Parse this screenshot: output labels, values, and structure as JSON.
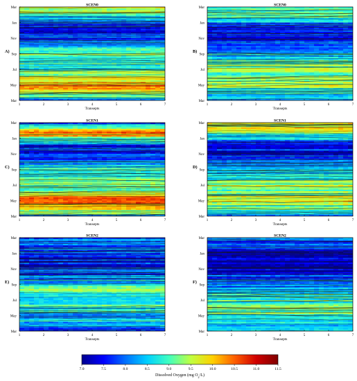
{
  "colors": {
    "colormap": [
      "#00008f",
      "#0000ff",
      "#0070ff",
      "#00d0ff",
      "#40ffc0",
      "#c0ff40",
      "#ffd000",
      "#ff6000",
      "#d00000",
      "#800000"
    ],
    "contour_line": "#1a1a1a",
    "axis": "#000000"
  },
  "chart_data": [
    {
      "type": "heatmap",
      "panel_label": "A)",
      "title": "SCEN0",
      "xlabel": "Transepts",
      "ylabel": "",
      "x_ticks": [
        "1",
        "2",
        "3",
        "4",
        "5",
        "6",
        "7"
      ],
      "y_ticks": [
        "Mar",
        "May",
        "Jul",
        "Sep",
        "Nov",
        "Jan",
        "Mar"
      ],
      "xlim": [
        1,
        7
      ],
      "value_profile_bottom_to_top": [
        8.3,
        9.0,
        10.0,
        10.4,
        9.8,
        9.4,
        9.0,
        8.6,
        8.8,
        9.3,
        8.9,
        8.4,
        8.0,
        7.6,
        7.5,
        7.6,
        7.8,
        8.6,
        9.2,
        9.6
      ],
      "gradient_along_x": 0.5
    },
    {
      "type": "heatmap",
      "panel_label": "B)",
      "title": "SCEN0",
      "xlabel": "Transepts",
      "ylabel": "",
      "x_ticks": [
        "1",
        "2",
        "3",
        "4",
        "5",
        "6",
        "7"
      ],
      "y_ticks": [
        "Mar",
        "May",
        "Jul",
        "Sep",
        "Nov",
        "Jan",
        "Mar"
      ],
      "xlim": [
        1,
        7
      ],
      "value_profile_bottom_to_top": [
        8.2,
        8.6,
        9.0,
        9.4,
        9.4,
        9.2,
        9.3,
        9.1,
        8.9,
        8.6,
        8.3,
        8.0,
        7.6,
        7.5,
        7.7,
        8.0,
        8.3,
        8.8,
        9.2,
        9.0
      ],
      "gradient_along_x": 0.6
    },
    {
      "type": "heatmap",
      "panel_label": "C)",
      "title": "SCEN1",
      "xlabel": "Transepts",
      "ylabel": "",
      "x_ticks": [
        "1",
        "2",
        "3",
        "4",
        "5",
        "6",
        "7"
      ],
      "y_ticks": [
        "Mar",
        "May",
        "Jul",
        "Sep",
        "Nov",
        "Jan",
        "Mar"
      ],
      "xlim": [
        1,
        7
      ],
      "value_profile_bottom_to_top": [
        8.4,
        9.4,
        10.4,
        10.6,
        10.0,
        9.4,
        9.0,
        8.8,
        9.0,
        8.8,
        8.6,
        8.1,
        7.7,
        7.5,
        7.6,
        8.3,
        9.6,
        10.6,
        9.0,
        8.0
      ],
      "gradient_along_x": 0.6
    },
    {
      "type": "heatmap",
      "panel_label": "D)",
      "title": "SCEN1",
      "xlabel": "Transepts",
      "ylabel": "",
      "x_ticks": [
        "1",
        "2",
        "3",
        "4",
        "5",
        "6",
        "7"
      ],
      "y_ticks": [
        "Mar",
        "May",
        "Jul",
        "Sep",
        "Nov",
        "Jan",
        "Mar"
      ],
      "xlim": [
        1,
        7
      ],
      "value_profile_bottom_to_top": [
        8.3,
        8.8,
        9.2,
        9.5,
        9.5,
        9.3,
        9.3,
        9.1,
        8.8,
        8.5,
        8.2,
        7.8,
        7.5,
        7.4,
        7.6,
        8.0,
        8.6,
        9.2,
        9.6,
        9.4
      ],
      "gradient_along_x": 0.6
    },
    {
      "type": "heatmap",
      "panel_label": "E)",
      "title": "SCEN2",
      "xlabel": "Transepts",
      "ylabel": "",
      "x_ticks": [
        "1",
        "2",
        "3",
        "4",
        "5",
        "6",
        "7"
      ],
      "y_ticks": [
        "Mar",
        "May",
        "Jul",
        "Sep",
        "Nov",
        "Jan",
        "Mar"
      ],
      "xlim": [
        1,
        7
      ],
      "value_profile_bottom_to_top": [
        7.9,
        8.2,
        8.5,
        8.4,
        8.6,
        8.8,
        8.9,
        9.0,
        9.2,
        8.8,
        8.4,
        8.0,
        7.8,
        7.6,
        7.5,
        7.6,
        7.8,
        7.9,
        8.0,
        8.1
      ],
      "gradient_along_x": 0.7
    },
    {
      "type": "heatmap",
      "panel_label": "F)",
      "title": "SCEN2",
      "xlabel": "Transepts",
      "ylabel": "",
      "x_ticks": [
        "1",
        "2",
        "3",
        "4",
        "5",
        "6",
        "7"
      ],
      "y_ticks": [
        "Mar",
        "May",
        "Jul",
        "Sep",
        "Nov",
        "Jan",
        "Mar"
      ],
      "xlim": [
        1,
        7
      ],
      "value_profile_bottom_to_top": [
        8.2,
        8.5,
        8.8,
        9.0,
        9.2,
        9.1,
        8.9,
        8.8,
        8.6,
        8.3,
        8.0,
        7.7,
        7.3,
        7.2,
        7.2,
        7.3,
        7.5,
        7.7,
        7.8,
        7.9
      ],
      "gradient_along_x": 0.3
    }
  ],
  "colorbar": {
    "ticks": [
      "7.0",
      "7.5",
      "8.0",
      "8.5",
      "9.0",
      "9.5",
      "10.0",
      "10.5",
      "11.0",
      "11.5"
    ],
    "range": [
      7.0,
      11.5
    ],
    "label_main": "Dissolved Oxygen (mg O",
    "label_sub": "2",
    "label_tail": "/L)"
  }
}
